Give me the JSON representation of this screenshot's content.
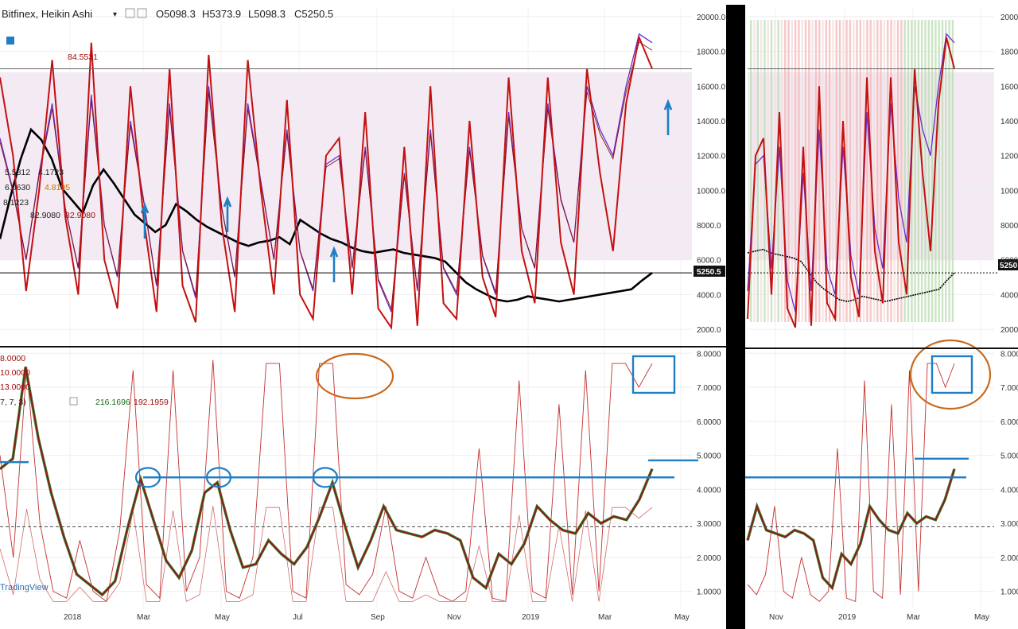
{
  "header": {
    "symbol": "Bitfinex, Heikin Ashi",
    "open": "O5098.3",
    "high": "H5373.9",
    "low": "L5098.3",
    "close": "C5250.5",
    "price_tag": "5250.5",
    "price_tag_right": "5250"
  },
  "legend": {
    "top_val_1": "84.5531",
    "top_row_a": "5.5812",
    "top_row_a2": "4.1723",
    "top_row_b": "6.0630",
    "top_row_b2": "4.8195",
    "top_row_c": "8.1223",
    "top_row_d": "82.9080",
    "top_row_d2": "82.9080",
    "bot_row_1": "8.0000",
    "bot_row_2": "10.0000",
    "bot_row_3": "13.0000",
    "bot_row_4a": "7, 7, 3)",
    "bot_row_4b": "216.1696",
    "bot_row_4c": "192.1959"
  },
  "watermark": "TradingView",
  "colors": {
    "oscillator_red": "#c41010",
    "oscillator_purple": "#6a2bd0",
    "price_black": "#000000",
    "signal_green": "#2e7d32",
    "annotation_blue": "#1f7ec4",
    "annotation_orange": "#c8691c",
    "band_pink": "#ead8ea",
    "bar_red": "#f4b6b6",
    "bar_green": "#b9dcb0"
  },
  "chart_data": [
    {
      "type": "line",
      "title": "",
      "y_axis_ticks": [
        "20000.0",
        "18000.0",
        "16000.0",
        "14000.0",
        "12000.0",
        "10000.0",
        "8000.0",
        "6000.0",
        "4000.0",
        "2000.0"
      ],
      "ylim": [
        1500,
        20500
      ],
      "x_axis_ticks": [
        "2018",
        "Mar",
        "May",
        "Jul",
        "Sep",
        "Nov",
        "2019",
        "Mar",
        "May"
      ],
      "series": [
        {
          "values": [
            7200,
            9600,
            11800,
            13500,
            12900,
            11800,
            10100,
            9400,
            8700,
            10300,
            11200,
            10400,
            9500,
            8600,
            8100,
            7600,
            8000,
            9200,
            8800,
            8300,
            7900,
            7600,
            7300,
            7000,
            6800,
            7000,
            7100,
            7300,
            6900,
            8300,
            7900,
            7500,
            7200,
            7000,
            6700,
            6500,
            6400,
            6500,
            6600,
            6400,
            6300,
            6200,
            6100,
            5900,
            5300,
            4700,
            4300,
            4000,
            3700,
            3600,
            3700,
            3900,
            3800,
            3700,
            3600,
            3700,
            3800,
            3900,
            4000,
            4100,
            4200,
            4300,
            4800,
            5250
          ]
        },
        {
          "values": [
            16500,
            12000,
            4200,
            10000,
            17500,
            8500,
            4000,
            18500,
            6000,
            3200,
            16000,
            8500,
            3000,
            17000,
            4500,
            2400,
            17800,
            8000,
            3000,
            17500,
            10000,
            4000,
            15200,
            4000,
            2600,
            12000,
            13000,
            4000,
            14500,
            3200,
            2100,
            12500,
            2200,
            16000,
            3500,
            2600,
            14000,
            5000,
            2700,
            16500,
            6500,
            3500,
            16500,
            7000,
            4000,
            17000,
            11000,
            6500,
            15000,
            18800,
            17000
          ]
        },
        {
          "values": [
            13000,
            10000,
            6000,
            11000,
            15000,
            9000,
            5500,
            15500,
            8000,
            5000,
            14000,
            9500,
            4500,
            15000,
            6500,
            3800,
            16000,
            9000,
            5000,
            15000,
            10500,
            6000,
            13500,
            6500,
            4200,
            11500,
            12000,
            5500,
            12500,
            4800,
            3000,
            11000,
            4200,
            13500,
            5500,
            4000,
            12500,
            6200,
            4000,
            14500,
            7800,
            5500,
            15000,
            9500,
            7000,
            16000,
            13500,
            12000,
            16000,
            19000,
            18500
          ]
        }
      ]
    },
    {
      "type": "line",
      "title": "",
      "y_axis_ticks": [
        "8.0000",
        "7.0000",
        "6.0000",
        "5.0000",
        "4.0000",
        "3.0000",
        "2.0000",
        "1.0000"
      ],
      "ylim": [
        0.5,
        8.1
      ],
      "reference_line": 2.9,
      "blue_level": 4.35,
      "series": [
        {
          "values": [
            4.6,
            4.9,
            7.6,
            5.5,
            3.9,
            2.6,
            1.5,
            1.2,
            0.9,
            1.3,
            2.9,
            4.3,
            3.1,
            1.9,
            1.4,
            2.2,
            3.9,
            4.2,
            2.8,
            1.7,
            1.8,
            2.5,
            2.1,
            1.8,
            2.3,
            3.2,
            4.2,
            2.9,
            1.7,
            2.5,
            3.5,
            2.8,
            2.7,
            2.6,
            2.8,
            2.7,
            2.5,
            1.4,
            1.1,
            2.1,
            1.8,
            2.4,
            3.5,
            3.1,
            2.8,
            2.7,
            3.3,
            3.0,
            3.2,
            3.1,
            3.7,
            4.6
          ]
        },
        {
          "values": [
            5.0,
            2.0,
            7.6,
            3.0,
            1.0,
            0.8,
            2.5,
            1.0,
            0.7,
            2.8,
            7.5,
            1.2,
            0.8,
            7.5,
            1.0,
            2.0,
            7.8,
            1.0,
            0.8,
            2.0,
            7.7,
            7.7,
            1.0,
            0.8,
            7.7,
            7.7,
            1.2,
            0.9,
            1.5,
            3.5,
            1.0,
            0.8,
            2.0,
            0.9,
            0.7,
            1.0,
            5.2,
            0.8,
            0.7,
            7.2,
            1.0,
            0.8,
            6.5,
            0.9,
            7.5,
            1.0,
            7.7,
            7.7,
            7.0,
            7.7
          ]
        }
      ]
    }
  ]
}
